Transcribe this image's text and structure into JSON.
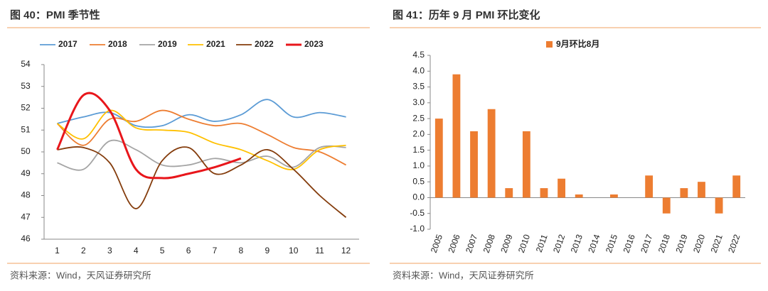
{
  "chart_data": [
    {
      "type": "line",
      "title": "图 40：PMI 季节性",
      "source": "资料来源：Wind，天风证券研究所",
      "categories": [
        "1",
        "2",
        "3",
        "4",
        "5",
        "6",
        "7",
        "8",
        "9",
        "10",
        "11",
        "12"
      ],
      "ylim": [
        46,
        54
      ],
      "yticks": [
        46,
        47,
        48,
        49,
        50,
        51,
        52,
        53,
        54
      ],
      "series": [
        {
          "name": "2017",
          "color": "#5b9bd5",
          "values": [
            51.3,
            51.6,
            51.8,
            51.2,
            51.2,
            51.7,
            51.4,
            51.7,
            52.4,
            51.6,
            51.8,
            51.6
          ]
        },
        {
          "name": "2018",
          "color": "#ed7d31",
          "values": [
            51.3,
            50.3,
            51.5,
            51.4,
            51.9,
            51.5,
            51.2,
            51.3,
            50.8,
            50.2,
            50.0,
            49.4
          ]
        },
        {
          "name": "2019",
          "color": "#a5a5a5",
          "values": [
            49.5,
            49.2,
            50.5,
            50.1,
            49.4,
            49.4,
            49.7,
            49.5,
            49.8,
            49.3,
            50.2,
            50.2
          ]
        },
        {
          "name": "2021",
          "color": "#ffc000",
          "values": [
            51.3,
            50.6,
            51.9,
            51.1,
            51.0,
            50.9,
            50.4,
            50.1,
            49.6,
            49.2,
            50.1,
            50.3
          ]
        },
        {
          "name": "2022",
          "color": "#843c0c",
          "values": [
            50.1,
            50.2,
            49.5,
            47.4,
            49.6,
            50.2,
            49.0,
            49.4,
            50.1,
            49.2,
            48.0,
            47.0
          ]
        },
        {
          "name": "2023",
          "color": "#e8161b",
          "values": [
            50.1,
            52.6,
            51.9,
            49.2,
            48.8,
            49.0,
            49.3,
            49.7,
            null,
            null,
            null,
            null
          ]
        }
      ]
    },
    {
      "type": "bar",
      "title": "图 41：历年 9 月 PMI 环比变化",
      "source": "资料来源：Wind，天风证券研究所",
      "categories": [
        "2005",
        "2006",
        "2007",
        "2008",
        "2009",
        "2010",
        "2011",
        "2012",
        "2013",
        "2014",
        "2015",
        "2016",
        "2017",
        "2018",
        "2019",
        "2020",
        "2021",
        "2022"
      ],
      "series": [
        {
          "name": "9月环比8月",
          "color": "#ed7d31",
          "values": [
            2.5,
            3.9,
            2.1,
            2.8,
            0.3,
            2.1,
            0.3,
            0.6,
            0.1,
            0,
            0.1,
            0,
            0.7,
            -0.5,
            0.3,
            0.5,
            -0.5,
            0.7
          ]
        }
      ],
      "ylim": [
        -1,
        4.5
      ],
      "yticks": [
        {
          "value": -1,
          "label": "-1.0"
        },
        -0.5,
        {
          "value": 0,
          "label": "0.0"
        },
        0.5,
        {
          "value": 1,
          "label": "1.0"
        },
        1.5,
        {
          "value": 2,
          "label": "2.0"
        },
        2.5,
        {
          "value": 3,
          "label": "3.0"
        },
        3.5,
        {
          "value": 4,
          "label": "4.0"
        },
        4.5
      ]
    }
  ]
}
